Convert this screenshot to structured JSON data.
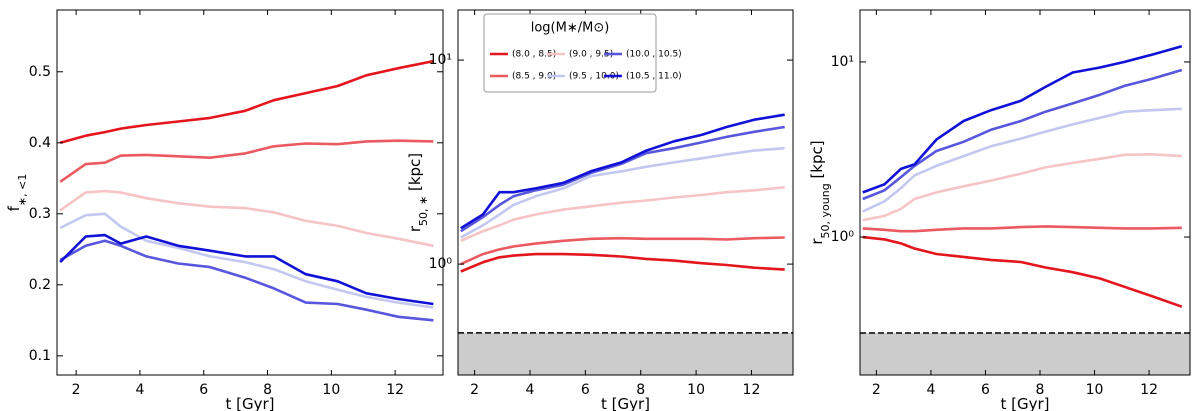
{
  "chart_data": [
    {
      "type": "line",
      "xlabel": "t [Gyr]",
      "ylabel": [
        {
          "text": "f"
        },
        {
          "text": "∗, <1",
          "sub": true
        }
      ],
      "log": false,
      "xlim": [
        1.4,
        13.5
      ],
      "xticks": [
        2,
        4,
        6,
        8,
        10,
        12
      ],
      "ylim": [
        0.073,
        0.587
      ],
      "yticks": [
        0.1,
        0.2,
        0.3,
        0.4,
        0.5
      ],
      "x": [
        1.5,
        2.3,
        2.9,
        3.4,
        4.2,
        5.2,
        6.2,
        7.3,
        8.2,
        9.2,
        10.2,
        11.1,
        12.1,
        13.2
      ],
      "series": [
        {
          "color": "#e4161d",
          "values": [
            0.4,
            0.41,
            0.415,
            0.42,
            0.425,
            0.43,
            0.435,
            0.445,
            0.46,
            0.47,
            0.48,
            0.495,
            0.505,
            0.515
          ]
        },
        {
          "color": "#ea5a60",
          "values": [
            0.345,
            0.37,
            0.372,
            0.382,
            0.383,
            0.381,
            0.379,
            0.385,
            0.395,
            0.399,
            0.398,
            0.402,
            0.403,
            0.402
          ]
        },
        {
          "color": "#f6c4c4",
          "values": [
            0.305,
            0.33,
            0.332,
            0.33,
            0.322,
            0.315,
            0.31,
            0.308,
            0.302,
            0.29,
            0.283,
            0.273,
            0.265,
            0.255
          ]
        },
        {
          "color": "#c4c7f0",
          "values": [
            0.28,
            0.298,
            0.3,
            0.282,
            0.262,
            0.252,
            0.24,
            0.232,
            0.222,
            0.205,
            0.193,
            0.183,
            0.175,
            0.168
          ]
        },
        {
          "color": "#5757de",
          "values": [
            0.235,
            0.255,
            0.262,
            0.255,
            0.24,
            0.23,
            0.225,
            0.21,
            0.195,
            0.175,
            0.173,
            0.165,
            0.155,
            0.15
          ]
        },
        {
          "color": "#1212d6",
          "values": [
            0.232,
            0.268,
            0.27,
            0.258,
            0.268,
            0.255,
            0.248,
            0.24,
            0.24,
            0.215,
            0.205,
            0.188,
            0.18,
            0.173
          ]
        }
      ]
    },
    {
      "type": "line",
      "xlabel": "t [Gyr]",
      "ylabel": [
        {
          "text": "r"
        },
        {
          "text": "50, ∗",
          "sub": true
        },
        {
          "text": " [kpc]"
        }
      ],
      "log": true,
      "xlim": [
        1.4,
        13.5
      ],
      "xticks": [
        2,
        4,
        6,
        8,
        10,
        12
      ],
      "ylim": [
        0.286,
        17.6
      ],
      "yticks": [
        {
          "value": 1,
          "label": "10⁰"
        },
        {
          "value": 10,
          "label": "10¹"
        }
      ],
      "threshold": 0.46,
      "legend": "upper left",
      "legend_title": "log(M∗/M⊙)",
      "x": [
        1.5,
        2.3,
        2.9,
        3.4,
        4.2,
        5.2,
        6.2,
        7.3,
        8.2,
        9.2,
        10.2,
        11.1,
        12.1,
        13.2
      ],
      "series": [
        {
          "name": "(8.0 , 8.5)",
          "color": "#e4161d",
          "values": [
            0.92,
            1.02,
            1.08,
            1.1,
            1.12,
            1.12,
            1.11,
            1.09,
            1.06,
            1.04,
            1.01,
            0.99,
            0.96,
            0.94
          ]
        },
        {
          "name": "(8.5 , 9.0)",
          "color": "#ea5a60",
          "values": [
            1.0,
            1.12,
            1.18,
            1.22,
            1.26,
            1.3,
            1.33,
            1.34,
            1.33,
            1.33,
            1.33,
            1.32,
            1.34,
            1.35
          ]
        },
        {
          "name": "(9.0 , 9.5)",
          "color": "#f6c4c4",
          "values": [
            1.3,
            1.45,
            1.55,
            1.65,
            1.75,
            1.85,
            1.92,
            2.0,
            2.05,
            2.12,
            2.18,
            2.25,
            2.3,
            2.38
          ]
        },
        {
          "name": "(9.5 , 10.0)",
          "color": "#c4c7f0",
          "values": [
            1.35,
            1.55,
            1.75,
            1.95,
            2.15,
            2.35,
            2.7,
            2.85,
            3.0,
            3.15,
            3.3,
            3.45,
            3.6,
            3.7
          ]
        },
        {
          "name": "(10.0 , 10.5)",
          "color": "#5757de",
          "values": [
            1.45,
            1.7,
            1.95,
            2.15,
            2.3,
            2.45,
            2.8,
            3.1,
            3.5,
            3.7,
            3.95,
            4.2,
            4.45,
            4.7
          ]
        },
        {
          "name": "(10.5 , 11.0)",
          "color": "#1212d6",
          "values": [
            1.5,
            1.75,
            2.25,
            2.25,
            2.35,
            2.5,
            2.85,
            3.15,
            3.6,
            4.0,
            4.3,
            4.7,
            5.1,
            5.4
          ]
        }
      ]
    },
    {
      "type": "line",
      "xlabel": "t [Gyr]",
      "ylabel": [
        {
          "text": "r"
        },
        {
          "text": "50, young",
          "sub": true
        },
        {
          "text": " [kpc]"
        }
      ],
      "log": true,
      "xlim": [
        1.4,
        13.5
      ],
      "xticks": [
        2,
        4,
        6,
        8,
        10,
        12
      ],
      "ylim": [
        0.163,
        19.8
      ],
      "yticks": [
        {
          "value": 1,
          "label": "10⁰"
        },
        {
          "value": 10,
          "label": "10¹"
        }
      ],
      "threshold": 0.283,
      "x": [
        1.5,
        2.3,
        2.9,
        3.4,
        4.2,
        5.2,
        6.2,
        7.3,
        8.2,
        9.2,
        10.2,
        11.1,
        12.1,
        13.2
      ],
      "series": [
        {
          "color": "#e4161d",
          "values": [
            1.0,
            0.97,
            0.92,
            0.86,
            0.8,
            0.77,
            0.74,
            0.72,
            0.67,
            0.63,
            0.58,
            0.52,
            0.46,
            0.4
          ]
        },
        {
          "color": "#ea5a60",
          "values": [
            1.12,
            1.1,
            1.08,
            1.08,
            1.1,
            1.12,
            1.12,
            1.14,
            1.15,
            1.14,
            1.13,
            1.12,
            1.12,
            1.13
          ]
        },
        {
          "color": "#f6c4c4",
          "values": [
            1.25,
            1.32,
            1.45,
            1.65,
            1.8,
            1.95,
            2.1,
            2.3,
            2.5,
            2.65,
            2.8,
            2.95,
            2.97,
            2.9
          ]
        },
        {
          "color": "#c4c7f0",
          "values": [
            1.4,
            1.6,
            1.9,
            2.25,
            2.55,
            2.9,
            3.3,
            3.65,
            4.0,
            4.4,
            4.8,
            5.2,
            5.3,
            5.4
          ]
        },
        {
          "color": "#5757de",
          "values": [
            1.65,
            1.85,
            2.2,
            2.55,
            3.1,
            3.5,
            4.1,
            4.6,
            5.2,
            5.8,
            6.5,
            7.3,
            8.0,
            9.0
          ]
        },
        {
          "color": "#1212d6",
          "values": [
            1.8,
            2.0,
            2.45,
            2.6,
            3.6,
            4.6,
            5.3,
            6.0,
            7.2,
            8.7,
            9.3,
            10.0,
            11.0,
            12.3
          ]
        }
      ]
    }
  ]
}
